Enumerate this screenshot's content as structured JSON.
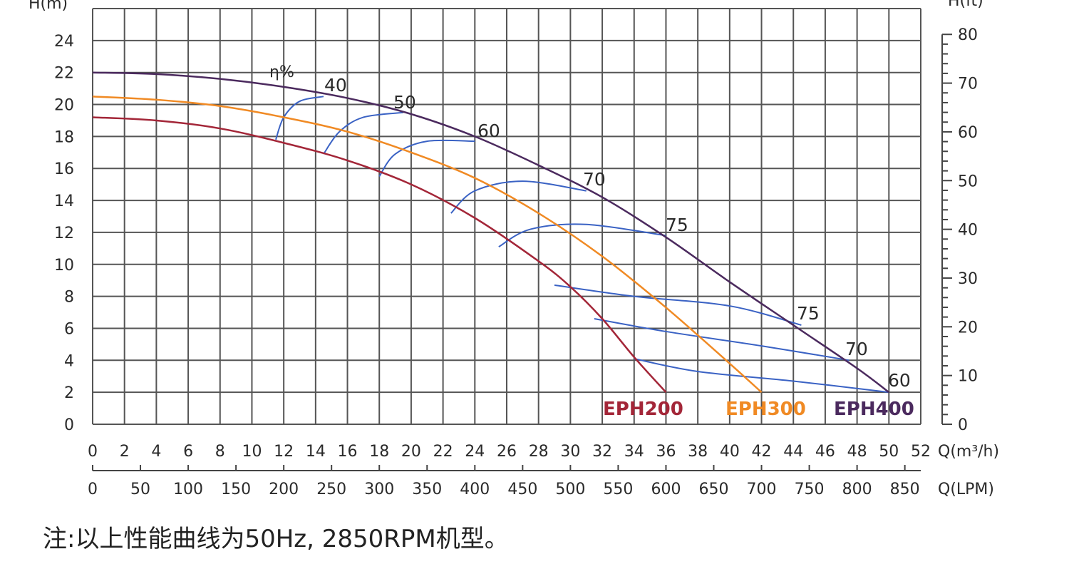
{
  "chart_data": {
    "type": "line",
    "left_axis": {
      "label": "H(m)",
      "min": 0,
      "max": 24,
      "step": 2
    },
    "right_axis": {
      "label": "H(ft)",
      "min": 0,
      "max": 80,
      "step": 10
    },
    "x_axis": {
      "label": "Q(m³/h)",
      "min": 0,
      "max": 52,
      "step": 2
    },
    "x_axis_secondary": {
      "label": "Q(LPM)",
      "ticks": [
        0,
        50,
        100,
        150,
        200,
        250,
        300,
        350,
        400,
        450,
        500,
        550,
        600,
        650,
        700,
        750,
        800,
        850
      ]
    },
    "grid": true,
    "series": [
      {
        "name": "EPH200",
        "color": "#a32638",
        "x": [
          0,
          4,
          8,
          12,
          16,
          20,
          24,
          28,
          30,
          32,
          34,
          36
        ],
        "y": [
          19.2,
          19.0,
          18.5,
          17.6,
          16.5,
          15.0,
          12.9,
          10.2,
          8.6,
          6.6,
          4.2,
          2.0
        ]
      },
      {
        "name": "EPH300",
        "color": "#f08a24",
        "x": [
          0,
          4,
          8,
          12,
          16,
          20,
          24,
          28,
          32,
          36,
          40,
          42
        ],
        "y": [
          20.5,
          20.3,
          19.9,
          19.2,
          18.3,
          17.0,
          15.4,
          13.2,
          10.5,
          7.3,
          3.8,
          2.0
        ]
      },
      {
        "name": "EPH400",
        "color": "#4b2a5e",
        "x": [
          0,
          4,
          8,
          12,
          16,
          20,
          24,
          28,
          32,
          36,
          40,
          44,
          48,
          50
        ],
        "y": [
          22.0,
          21.9,
          21.6,
          21.1,
          20.4,
          19.4,
          18.0,
          16.2,
          14.2,
          11.7,
          8.9,
          6.2,
          3.5,
          2.0
        ]
      }
    ],
    "efficiency": {
      "symbol": "η%",
      "curves": [
        {
          "label": "40",
          "x": [
            11.5,
            12,
            13,
            14.5
          ],
          "y": [
            17.8,
            19.2,
            20.2,
            20.5
          ]
        },
        {
          "label": "50",
          "x": [
            14.5,
            15.5,
            17,
            19.5
          ],
          "y": [
            16.9,
            18.3,
            19.2,
            19.5
          ]
        },
        {
          "label": "60",
          "x": [
            18,
            19,
            21,
            24
          ],
          "y": [
            15.5,
            16.9,
            17.7,
            17.7
          ]
        },
        {
          "label": "70",
          "x": [
            22.5,
            24,
            27,
            31
          ],
          "y": [
            13.2,
            14.6,
            15.2,
            14.6
          ]
        },
        {
          "label": "75",
          "x": [
            25.5,
            27.5,
            31,
            36
          ],
          "y": [
            11.1,
            12.2,
            12.5,
            11.8
          ]
        },
        {
          "label": "75",
          "x": [
            29,
            34,
            40,
            44.5
          ],
          "y": [
            8.7,
            8.0,
            7.4,
            6.2
          ]
        },
        {
          "label": "70",
          "x": [
            31.5,
            36,
            42,
            47.5
          ],
          "y": [
            6.6,
            5.8,
            4.9,
            4.0
          ]
        },
        {
          "label": "60",
          "x": [
            34,
            38,
            44,
            50
          ],
          "y": [
            4.1,
            3.3,
            2.7,
            2.0
          ]
        }
      ]
    }
  },
  "note": "注:以上性能曲线为50Hz, 2850RPM机型。"
}
